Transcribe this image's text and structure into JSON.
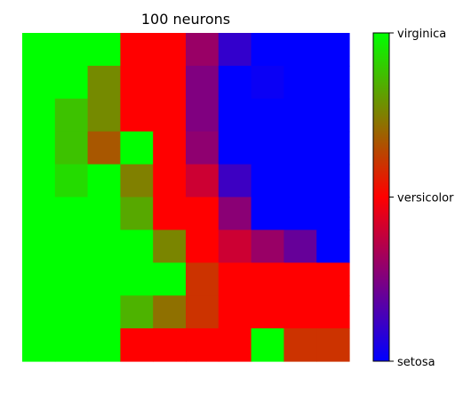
{
  "chart_data": {
    "type": "heatmap",
    "title": "100 neurons",
    "rows": 10,
    "cols": 10,
    "grid": false,
    "axes_visible": false,
    "colorbar": {
      "position": "right",
      "range": [
        0,
        1
      ],
      "stops": [
        {
          "value": 0.0,
          "color": "#0000ff"
        },
        {
          "value": 0.5,
          "color": "#ff0000"
        },
        {
          "value": 1.0,
          "color": "#00ff00"
        }
      ],
      "ticks": [
        {
          "value": 1.0,
          "label": "virginica"
        },
        {
          "value": 0.5,
          "label": "versicolor"
        },
        {
          "value": 0.0,
          "label": "setosa"
        }
      ]
    },
    "values": [
      [
        1.0,
        1.0,
        1.0,
        0.5,
        0.5,
        0.3,
        0.1,
        0.0,
        0.0,
        0.0
      ],
      [
        1.0,
        1.0,
        0.77,
        0.5,
        0.5,
        0.25,
        0.0,
        0.02,
        0.0,
        0.0
      ],
      [
        1.0,
        0.88,
        0.77,
        0.5,
        0.5,
        0.25,
        0.0,
        0.0,
        0.0,
        0.0
      ],
      [
        1.0,
        0.88,
        0.67,
        1.0,
        0.5,
        0.28,
        0.0,
        0.0,
        0.0,
        0.0
      ],
      [
        1.0,
        0.93,
        1.0,
        0.75,
        0.5,
        0.4,
        0.12,
        0.0,
        0.0,
        0.0
      ],
      [
        1.0,
        1.0,
        1.0,
        0.83,
        0.5,
        0.5,
        0.27,
        0.0,
        0.0,
        0.0
      ],
      [
        1.0,
        1.0,
        1.0,
        1.0,
        0.76,
        0.5,
        0.4,
        0.3,
        0.2,
        0.0
      ],
      [
        1.0,
        1.0,
        1.0,
        1.0,
        1.0,
        0.6,
        0.5,
        0.5,
        0.5,
        0.5
      ],
      [
        1.0,
        1.0,
        1.0,
        0.85,
        0.72,
        0.6,
        0.5,
        0.5,
        0.5,
        0.5
      ],
      [
        1.0,
        1.0,
        1.0,
        0.5,
        0.5,
        0.5,
        0.5,
        1.0,
        0.6,
        0.6
      ]
    ]
  }
}
